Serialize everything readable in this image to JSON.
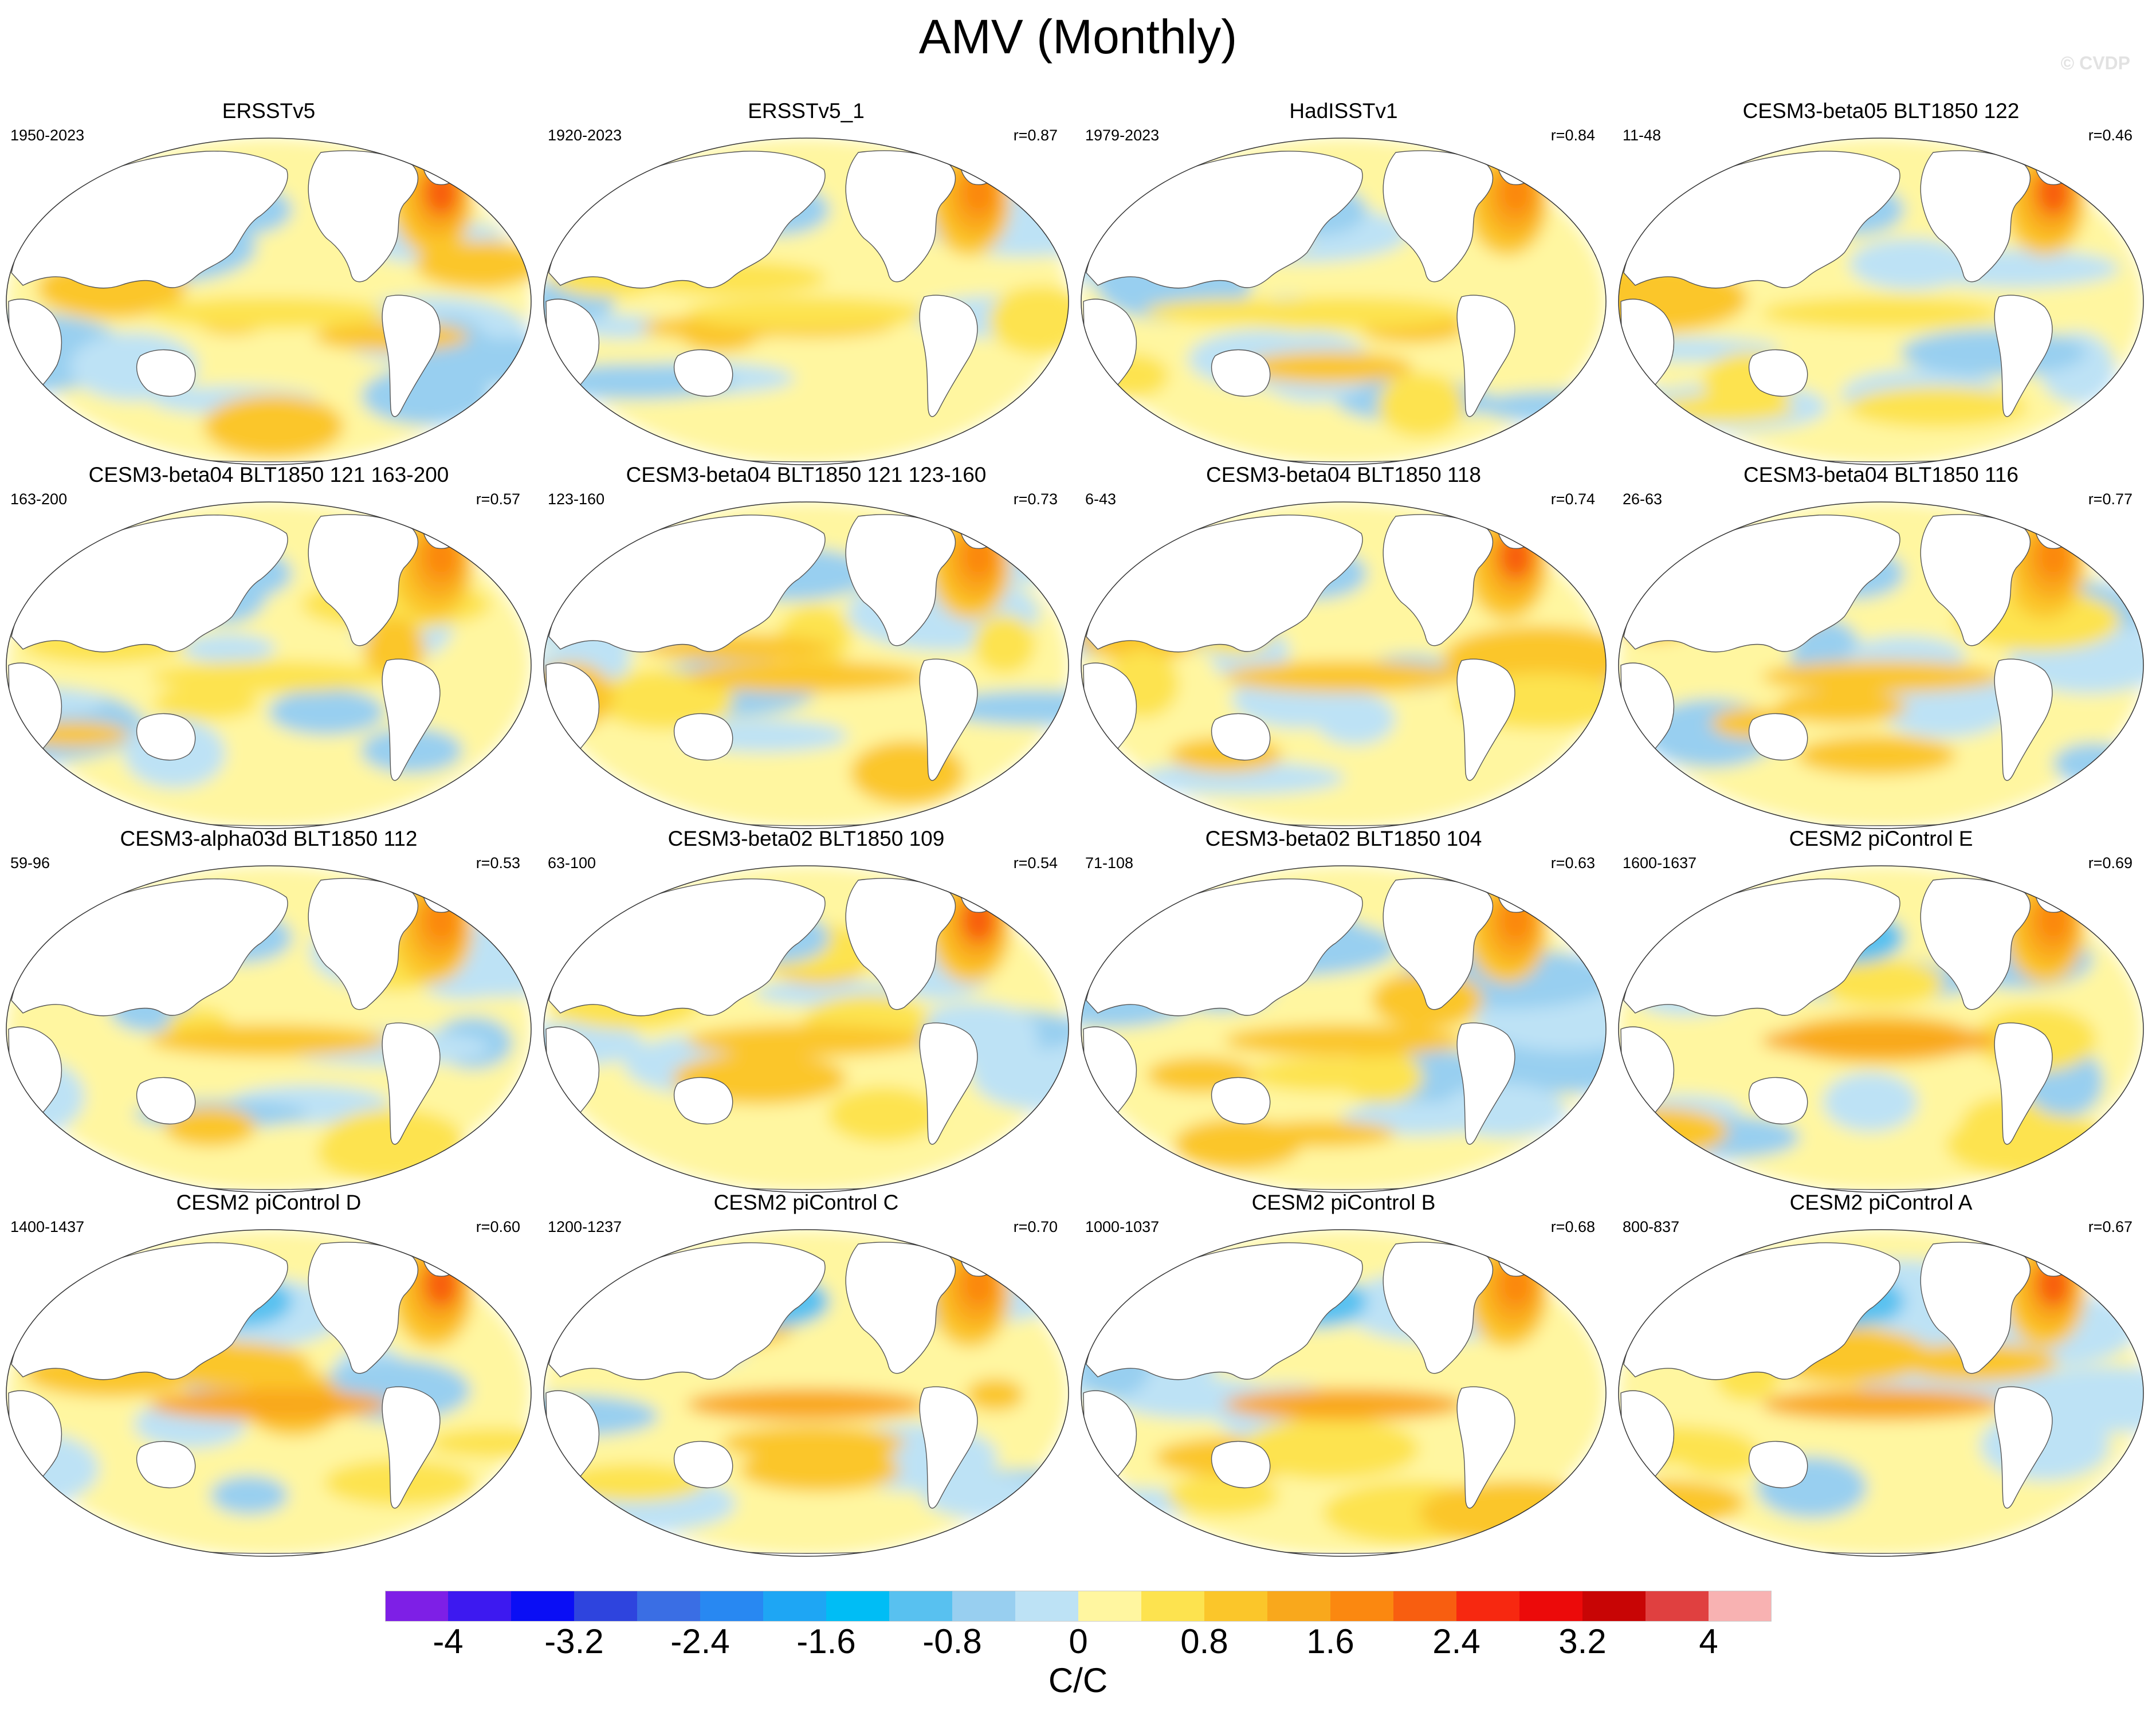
{
  "title": "AMV (Monthly)",
  "watermark": "© CVDP",
  "panels": [
    {
      "title": "ERSSTv5",
      "period": "1950-2023",
      "r": ""
    },
    {
      "title": "ERSSTv5_1",
      "period": "1920-2023",
      "r": "r=0.87"
    },
    {
      "title": "HadISSTv1",
      "period": "1979-2023",
      "r": "r=0.84"
    },
    {
      "title": "CESM3-beta05 BLT1850 122",
      "period": "11-48",
      "r": "r=0.46"
    },
    {
      "title": "CESM3-beta04 BLT1850 121 163-200",
      "period": "163-200",
      "r": "r=0.57"
    },
    {
      "title": "CESM3-beta04 BLT1850 121 123-160",
      "period": "123-160",
      "r": "r=0.73"
    },
    {
      "title": "CESM3-beta04 BLT1850 118",
      "period": "6-43",
      "r": "r=0.74"
    },
    {
      "title": "CESM3-beta04 BLT1850 116",
      "period": "26-63",
      "r": "r=0.77"
    },
    {
      "title": "CESM3-alpha03d BLT1850 112",
      "period": "59-96",
      "r": "r=0.53"
    },
    {
      "title": "CESM3-beta02 BLT1850 109",
      "period": "63-100",
      "r": "r=0.54"
    },
    {
      "title": "CESM3-beta02 BLT1850 104",
      "period": "71-108",
      "r": "r=0.63"
    },
    {
      "title": "CESM2 piControl E",
      "period": "1600-1637",
      "r": "r=0.69"
    },
    {
      "title": "CESM2 piControl D",
      "period": "1400-1437",
      "r": "r=0.60"
    },
    {
      "title": "CESM2 piControl C",
      "period": "1200-1237",
      "r": "r=0.70"
    },
    {
      "title": "CESM2 piControl B",
      "period": "1000-1037",
      "r": "r=0.68"
    },
    {
      "title": "CESM2 piControl A",
      "period": "800-837",
      "r": "r=0.67"
    }
  ],
  "colorbar": {
    "colors": [
      "#7e1fe6",
      "#3d19f0",
      "#0a0ef5",
      "#2e44de",
      "#3a6ee4",
      "#2888f2",
      "#1ea6f4",
      "#00bdf5",
      "#58c1f0",
      "#98cff0",
      "#bde2f5",
      "#fff6a0",
      "#fde34f",
      "#fbc62a",
      "#f9a81c",
      "#fb8810",
      "#f85e10",
      "#f72810",
      "#ec0a0a",
      "#c80505",
      "#e04040",
      "#f8b2b2"
    ],
    "tick_labels": [
      "-4",
      "-3.2",
      "-2.4",
      "-1.6",
      "-0.8",
      "0",
      "0.8",
      "1.6",
      "2.4",
      "3.2",
      "4"
    ],
    "units": "C/C"
  }
}
